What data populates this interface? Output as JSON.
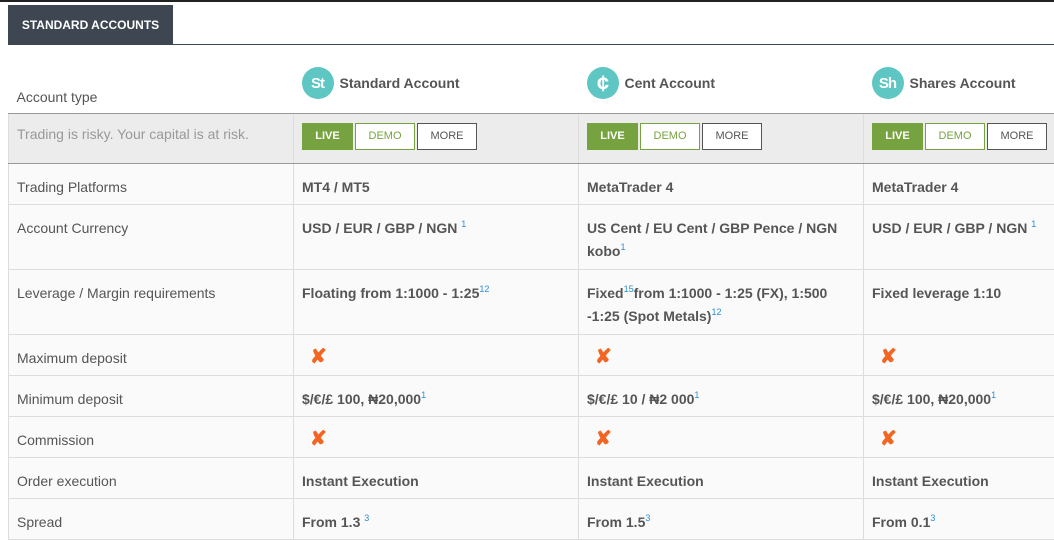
{
  "tab": "STANDARD ACCOUNTS",
  "header": {
    "label": "Account type",
    "accounts": [
      {
        "logo": "St",
        "name": "Standard Account"
      },
      {
        "logo": "¢",
        "name": "Cent Account"
      },
      {
        "logo": "Sh",
        "name": "Shares Account"
      }
    ]
  },
  "risk": {
    "text": "Trading is risky. Your capital is at risk.",
    "live": "LIVE",
    "demo": "DEMO",
    "more": "MORE"
  },
  "colors": {
    "accent": "#76a33f",
    "logo": "#5ec6c3",
    "cross": "#f26522",
    "tab": "#3d4651"
  },
  "rows": [
    {
      "label": "Trading Platforms",
      "cells": [
        [
          {
            "t": "MT4 / MT5"
          }
        ],
        [
          {
            "t": "MetaTrader 4"
          }
        ],
        [
          {
            "t": "MetaTrader 4"
          }
        ]
      ]
    },
    {
      "label": "Account Currency",
      "cells": [
        [
          {
            "t": "USD / EUR / GBP / NGN "
          },
          {
            "s": "1"
          }
        ],
        [
          {
            "t": "US Cent / EU Cent / GBP Pence / NGN kobo"
          },
          {
            "s": "1"
          }
        ],
        [
          {
            "t": "USD / EUR / GBP / NGN "
          },
          {
            "s": "1"
          }
        ]
      ]
    },
    {
      "label": "Leverage / Margin requirements",
      "cells": [
        [
          {
            "t": "Floating from 1:1000 - 1:25"
          },
          {
            "s": "12"
          }
        ],
        [
          {
            "t": "Fixed"
          },
          {
            "s": "15"
          },
          {
            "t": "from 1:1000 - 1:25 (FX), 1:500 -1:25 (Spot Metals)"
          },
          {
            "s": "12"
          }
        ],
        [
          {
            "t": "Fixed leverage 1:10"
          }
        ]
      ]
    },
    {
      "label": "Maximum deposit",
      "cells": [
        "cross",
        "cross",
        "cross"
      ]
    },
    {
      "label": "Minimum deposit",
      "cells": [
        [
          {
            "t": "$/€/£ 100, ₦20,000"
          },
          {
            "s": "1"
          }
        ],
        [
          {
            "t": "$/€/£ 10 / ₦2 000"
          },
          {
            "s": "1"
          }
        ],
        [
          {
            "t": "$/€/£ 100, ₦20,000"
          },
          {
            "s": "1"
          }
        ]
      ]
    },
    {
      "label": "Commission",
      "cells": [
        "cross",
        "cross",
        "cross"
      ]
    },
    {
      "label": "Order execution",
      "cells": [
        [
          {
            "t": "Instant Execution"
          }
        ],
        [
          {
            "t": "Instant Execution"
          }
        ],
        [
          {
            "t": "Instant Execution"
          }
        ]
      ]
    },
    {
      "label": "Spread",
      "cells": [
        [
          {
            "t": "From 1.3 "
          },
          {
            "s": "3"
          }
        ],
        [
          {
            "t": "From 1.5"
          },
          {
            "s": "3"
          }
        ],
        [
          {
            "t": "From 0.1"
          },
          {
            "s": "3"
          }
        ]
      ]
    }
  ]
}
